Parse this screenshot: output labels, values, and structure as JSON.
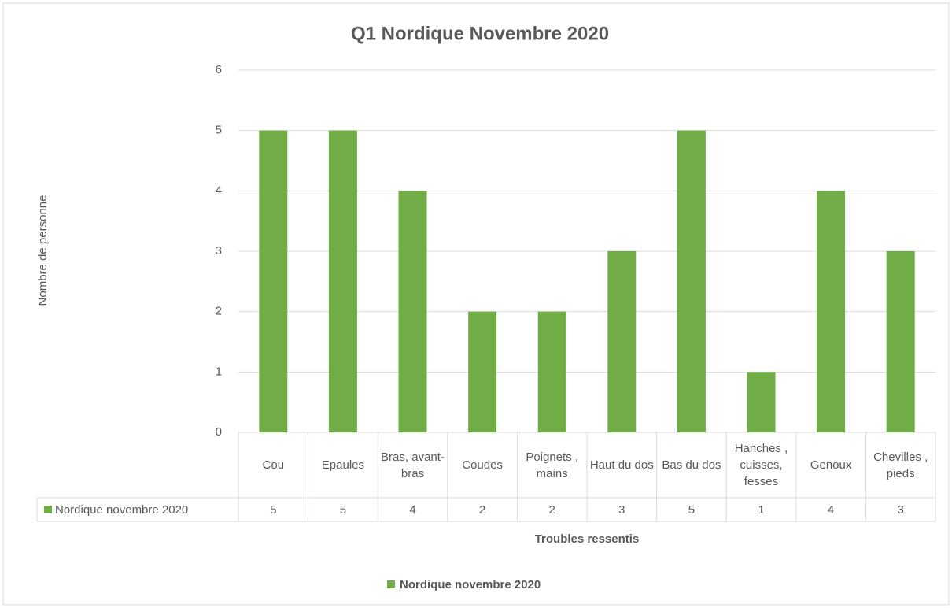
{
  "chart_data": {
    "type": "bar",
    "title": "Q1 Nordique Novembre 2020",
    "x_label": "Troubles ressentis",
    "y_label": "Nombre de personne",
    "categories": [
      "Cou",
      "Epaules",
      "Bras, avant-bras",
      "Coudes",
      "Poignets , mains",
      "Haut du dos",
      "Bas du dos",
      "Hanches , cuisses, fesses",
      "Genoux",
      "Chevilles , pieds"
    ],
    "series": [
      {
        "name": "Nordique novembre 2020",
        "color": "#70ad47",
        "values": [
          5,
          5,
          4,
          2,
          2,
          3,
          5,
          1,
          4,
          3
        ]
      }
    ],
    "ylim": [
      0,
      6
    ],
    "yticks": [
      0,
      1,
      2,
      3,
      4,
      5,
      6
    ],
    "grid": true,
    "legend": "bottom"
  }
}
